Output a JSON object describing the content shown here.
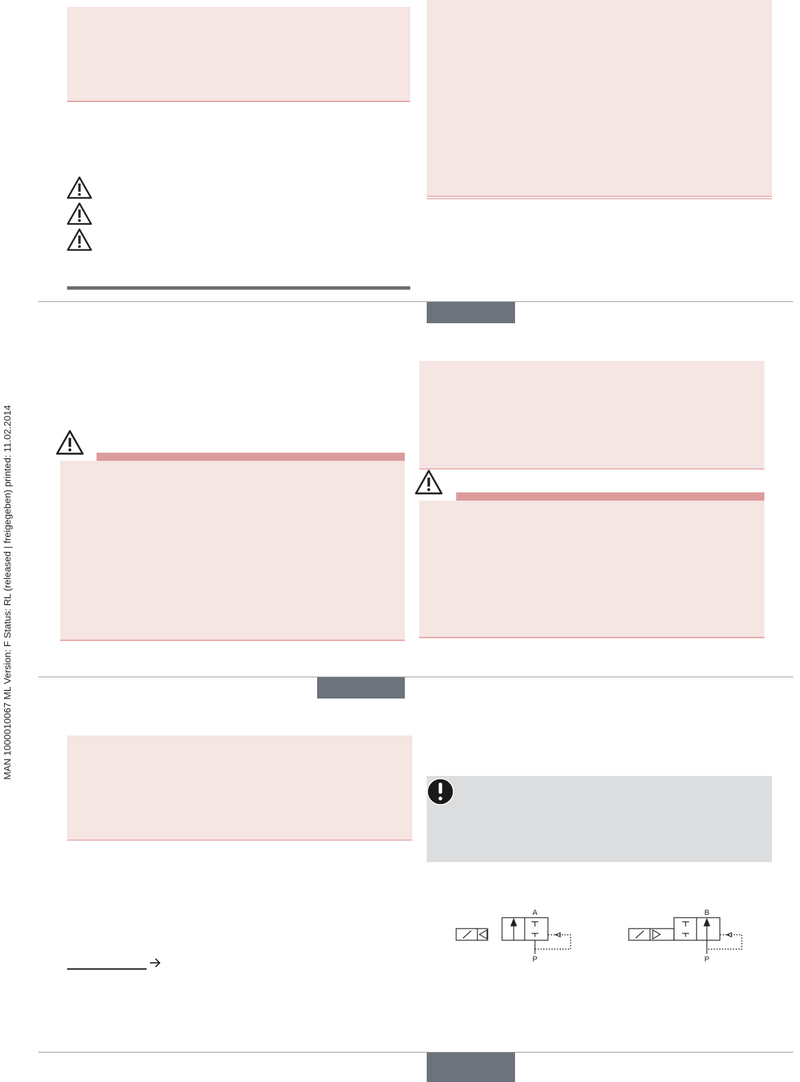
{
  "sidebar": {
    "text": "MAN  1000010067  ML  Version: F  Status: RL (released | freigegeben)  printed: 11.02.2014"
  },
  "diagrams": [
    {
      "top_label": "A",
      "bottom_label": "P"
    },
    {
      "top_label": "B",
      "bottom_label": "P"
    }
  ]
}
